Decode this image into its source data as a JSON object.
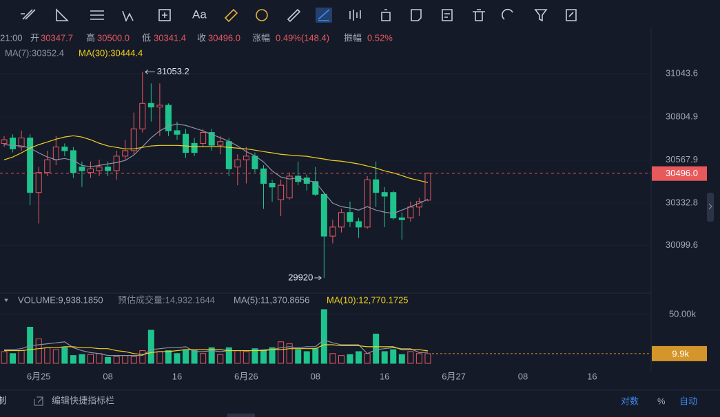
{
  "ui": {
    "toolbar_text": "Aa",
    "footer_cut": "制",
    "footer_edit": "编辑快捷指标栏",
    "footer_log": "对数",
    "footer_pct": "%",
    "footer_auto": "自动"
  },
  "header": {
    "time": "21:00",
    "open_label": "开",
    "open": "30347.7",
    "high_label": "高",
    "high": "30500.0",
    "low_label": "低",
    "low": "30341.4",
    "close_label": "收",
    "close": "30496.0",
    "change_label": "涨幅",
    "change": "0.49%(148.4)",
    "amp_label": "振幅",
    "amp": "0.52%",
    "ma7": "MA(7):30352.4",
    "ma30": "MA(30):30444.4"
  },
  "chart_data": {
    "type": "candlestick",
    "categories": [
      null,
      null,
      null,
      null,
      "6月25",
      null,
      null,
      null,
      null,
      null,
      null,
      null,
      "08",
      null,
      null,
      null,
      null,
      null,
      null,
      null,
      "16",
      null,
      null,
      null,
      null,
      null,
      null,
      null,
      "6月26",
      null,
      null,
      null,
      null,
      null,
      null,
      null,
      "08",
      null,
      null,
      null,
      null,
      null,
      null,
      null,
      "16",
      null,
      null,
      null,
      null,
      null
    ],
    "future_categories": [
      "6月27",
      "08",
      "16"
    ],
    "ylim": [
      29840,
      31165
    ],
    "yticks": [
      {
        "value": 30099.6,
        "label": "30099.6"
      },
      {
        "value": 30332.8,
        "label": "30332.8"
      },
      {
        "value": 30567.9,
        "label": "30567.9"
      },
      {
        "value": 30804.9,
        "label": "30804.9"
      },
      {
        "value": 31043.6,
        "label": "31043.6"
      }
    ],
    "up_color": "#e8595c",
    "down_color": "#1fc48c",
    "candles": [
      {
        "open": 30660,
        "high": 30700,
        "low": 30640,
        "close": 30680
      },
      {
        "open": 30690,
        "high": 30710,
        "low": 30610,
        "close": 30630
      },
      {
        "open": 30640,
        "high": 30730,
        "low": 30620,
        "close": 30690
      },
      {
        "open": 30690,
        "high": 30710,
        "low": 30320,
        "close": 30390
      },
      {
        "open": 30390,
        "high": 30530,
        "low": 30220,
        "close": 30500
      },
      {
        "open": 30500,
        "high": 30620,
        "low": 30480,
        "close": 30570
      },
      {
        "open": 30570,
        "high": 30700,
        "low": 30540,
        "close": 30640
      },
      {
        "open": 30640,
        "high": 30660,
        "low": 30590,
        "close": 30620
      },
      {
        "open": 30620,
        "high": 30640,
        "low": 30470,
        "close": 30500
      },
      {
        "open": 30530,
        "high": 30560,
        "low": 30420,
        "close": 30510
      },
      {
        "open": 30500,
        "high": 30560,
        "low": 30470,
        "close": 30520
      },
      {
        "open": 30510,
        "high": 30570,
        "low": 30480,
        "close": 30530
      },
      {
        "open": 30530,
        "high": 30560,
        "low": 30480,
        "close": 30510
      },
      {
        "open": 30510,
        "high": 30620,
        "low": 30460,
        "close": 30590
      },
      {
        "open": 30590,
        "high": 30680,
        "low": 30570,
        "close": 30620
      },
      {
        "open": 30620,
        "high": 30830,
        "low": 30600,
        "close": 30740
      },
      {
        "open": 30740,
        "high": 31053.2,
        "low": 30720,
        "close": 30880
      },
      {
        "open": 30880,
        "high": 30990,
        "low": 30780,
        "close": 30860
      },
      {
        "open": 30860,
        "high": 30990,
        "low": 30700,
        "close": 30870
      },
      {
        "open": 30870,
        "high": 30880,
        "low": 30700,
        "close": 30730
      },
      {
        "open": 30730,
        "high": 30780,
        "low": 30680,
        "close": 30710
      },
      {
        "open": 30710,
        "high": 30740,
        "low": 30580,
        "close": 30610
      },
      {
        "open": 30660,
        "high": 30690,
        "low": 30590,
        "close": 30610
      },
      {
        "open": 30660,
        "high": 30740,
        "low": 30640,
        "close": 30720
      },
      {
        "open": 30720,
        "high": 30740,
        "low": 30620,
        "close": 30650
      },
      {
        "open": 30650,
        "high": 30700,
        "low": 30600,
        "close": 30670
      },
      {
        "open": 30670,
        "high": 30690,
        "low": 30480,
        "close": 30520
      },
      {
        "open": 30530,
        "high": 30600,
        "low": 30430,
        "close": 30570
      },
      {
        "open": 30570,
        "high": 30640,
        "low": 30440,
        "close": 30590
      },
      {
        "open": 30590,
        "high": 30610,
        "low": 30500,
        "close": 30520
      },
      {
        "open": 30520,
        "high": 30540,
        "low": 30300,
        "close": 30440
      },
      {
        "open": 30440,
        "high": 30460,
        "low": 30340,
        "close": 30420
      },
      {
        "open": 30350,
        "high": 30460,
        "low": 30260,
        "close": 30430
      },
      {
        "open": 30360,
        "high": 30500,
        "low": 30350,
        "close": 30480
      },
      {
        "open": 30480,
        "high": 30560,
        "low": 30430,
        "close": 30450
      },
      {
        "open": 30470,
        "high": 30490,
        "low": 30400,
        "close": 30440
      },
      {
        "open": 30450,
        "high": 30530,
        "low": 30370,
        "close": 30380
      },
      {
        "open": 30380,
        "high": 30390,
        "low": 29920,
        "close": 30150
      },
      {
        "open": 30150,
        "high": 30240,
        "low": 30110,
        "close": 30200
      },
      {
        "open": 30200,
        "high": 30300,
        "low": 30170,
        "close": 30280
      },
      {
        "open": 30280,
        "high": 30340,
        "low": 30200,
        "close": 30230
      },
      {
        "open": 30230,
        "high": 30250,
        "low": 30140,
        "close": 30200
      },
      {
        "open": 30200,
        "high": 30480,
        "low": 30190,
        "close": 30460
      },
      {
        "open": 30460,
        "high": 30560,
        "low": 30310,
        "close": 30390
      },
      {
        "open": 30390,
        "high": 30420,
        "low": 30200,
        "close": 30370
      },
      {
        "open": 30390,
        "high": 30400,
        "low": 30240,
        "close": 30250
      },
      {
        "open": 30250,
        "high": 30280,
        "low": 30130,
        "close": 30240
      },
      {
        "open": 30250,
        "high": 30340,
        "low": 30230,
        "close": 30310
      },
      {
        "open": 30310,
        "high": 30360,
        "low": 30260,
        "close": 30340
      },
      {
        "open": 30347.7,
        "high": 30500.0,
        "low": 30341.4,
        "close": 30496.0
      }
    ],
    "series": [
      {
        "name": "MA(7)",
        "color": "#8e93a6",
        "values": [
          30653,
          30649,
          30646,
          30634,
          30608,
          30585,
          30570,
          30577,
          30566,
          30539,
          30532,
          30539,
          30547,
          30555,
          30566,
          30596,
          30642,
          30691,
          30729,
          30755,
          30767,
          30759,
          30744,
          30729,
          30710,
          30691,
          30672,
          30646,
          30615,
          30592,
          30558,
          30509,
          30475,
          30464,
          30471,
          30456,
          30448,
          30388,
          30331,
          30312,
          30305,
          30293,
          30312,
          30293,
          30282,
          30274,
          30293,
          30312,
          30331,
          30352.4
        ]
      },
      {
        "name": "MA(30)",
        "color": "#f2d31b",
        "values": [
          30570,
          30585,
          30608,
          30634,
          30653,
          30668,
          30683,
          30695,
          30702,
          30695,
          30680,
          30661,
          30646,
          30638,
          30630,
          30630,
          30638,
          30646,
          30649,
          30649,
          30649,
          30646,
          30642,
          30642,
          30642,
          30642,
          30638,
          30634,
          30630,
          30623,
          30615,
          30608,
          30600,
          30596,
          30592,
          30589,
          30581,
          30574,
          30566,
          30562,
          30555,
          30547,
          30536,
          30524,
          30509,
          30498,
          30483,
          30467,
          30456,
          30444.4
        ]
      }
    ],
    "max_label": "31053.2",
    "min_label": "29920",
    "last_price": {
      "value": 30496.0,
      "label": "30496.0"
    },
    "volume": {
      "ylim": [
        0,
        62000
      ],
      "yticks": [
        {
          "value": 50000,
          "label": "50.00k"
        }
      ],
      "title": "VOLUME:9,938.1850",
      "estimate": "预估成交量:14,932.1644",
      "ma5": "MA(5):11,370.8656",
      "ma10": "MA(10):12,770.1725",
      "values": [
        12000,
        10000,
        13000,
        37000,
        25000,
        16000,
        14000,
        16000,
        8000,
        9000,
        9000,
        10000,
        6000,
        7000,
        8000,
        7000,
        13000,
        34000,
        12000,
        13000,
        10000,
        14000,
        13000,
        10000,
        16000,
        9000,
        16000,
        13000,
        12000,
        15000,
        13000,
        16000,
        22000,
        20000,
        14000,
        12000,
        15000,
        55000,
        10000,
        8000,
        9000,
        12000,
        10000,
        30000,
        12000,
        14000,
        9000,
        12000,
        10000,
        9938.185
      ],
      "last_label": "9.9k",
      "series": [
        {
          "name": "MA(5)",
          "color": "#8e93a6",
          "values": [
            14000,
            14000,
            15000,
            18000,
            19000,
            20000,
            21000,
            22000,
            16000,
            13000,
            11000,
            10000,
            8000,
            8000,
            8000,
            8000,
            8000,
            14000,
            15000,
            16000,
            16000,
            17000,
            12000,
            12000,
            13000,
            12000,
            13000,
            13000,
            13000,
            13000,
            14000,
            14000,
            16000,
            17000,
            16000,
            17000,
            17000,
            24000,
            21000,
            19000,
            19000,
            19000,
            10000,
            14000,
            15000,
            16000,
            15000,
            15000,
            11000,
            11370.8656
          ]
        },
        {
          "name": "MA(10)",
          "color": "#f2d31b",
          "values": [
            13000,
            13000,
            13000,
            14000,
            15000,
            16000,
            16000,
            17000,
            17000,
            16000,
            16000,
            15000,
            15000,
            13000,
            12000,
            10000,
            9000,
            11000,
            12000,
            12000,
            13000,
            14000,
            14000,
            14000,
            14000,
            14000,
            13000,
            13000,
            13000,
            13000,
            13000,
            14000,
            14000,
            15000,
            15000,
            15000,
            15000,
            19000,
            19000,
            18000,
            18000,
            18000,
            17000,
            17000,
            17000,
            17000,
            14000,
            14000,
            14000,
            12770.1725
          ]
        }
      ]
    }
  }
}
